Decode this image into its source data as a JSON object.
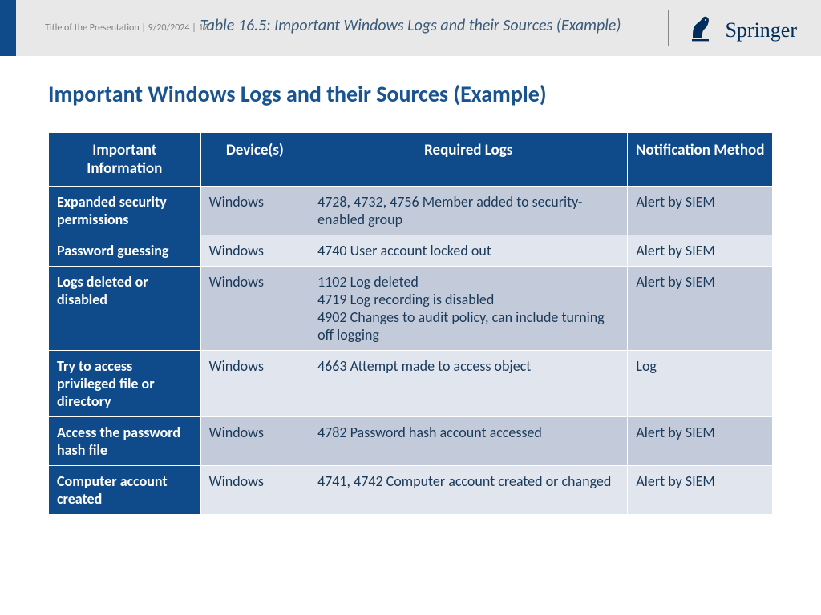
{
  "header": {
    "meta_left": "Title of the Presentation",
    "meta_date": "9/20/2024",
    "meta_page": "17",
    "caption": "Table 16.5:  Important Windows Logs and their Sources (Example)",
    "brand": "Springer"
  },
  "page_title": "Important Windows Logs and their Sources (Example)",
  "table": {
    "columns": [
      "Important Information",
      "Device(s)",
      "Required Logs",
      "Notification Method"
    ],
    "col_widths_pct": [
      21,
      15,
      44,
      20
    ],
    "header_bg": "#0f4a8a",
    "header_fg": "#ffffff",
    "rowhead_bg": "#0f4a8a",
    "rowhead_fg": "#ffffff",
    "shade_a": "#c3cbdb",
    "shade_b": "#e1e5ed",
    "text_color": "#1a3a5a",
    "title_color": "#1a5490",
    "header_fontsize": 19,
    "cell_fontsize": 18,
    "rows": [
      {
        "info": "Expanded security permissions",
        "device": "Windows",
        "logs": "4728, 4732, 4756 Member added to security-enabled group",
        "notif": "Alert by SIEM"
      },
      {
        "info": "Password guessing",
        "device": "Windows",
        "logs": "4740 User account locked out",
        "notif": "Alert by SIEM"
      },
      {
        "info": "Logs deleted or disabled",
        "device": "Windows",
        "logs": "1102 Log deleted\n4719 Log recording is disabled\n4902 Changes to audit policy, can include turning off logging",
        "notif": "Alert by SIEM"
      },
      {
        "info": "Try to access privileged file or directory",
        "device": "Windows",
        "logs": "4663 Attempt made to access object",
        "notif": "Log"
      },
      {
        "info": "Access the password hash file",
        "device": "Windows",
        "logs": "4782 Password hash account accessed",
        "notif": "Alert by SIEM"
      },
      {
        "info": "Computer account created",
        "device": "Windows",
        "logs": "4741, 4742 Computer account created or changed",
        "notif": "Alert by SIEM"
      }
    ]
  }
}
